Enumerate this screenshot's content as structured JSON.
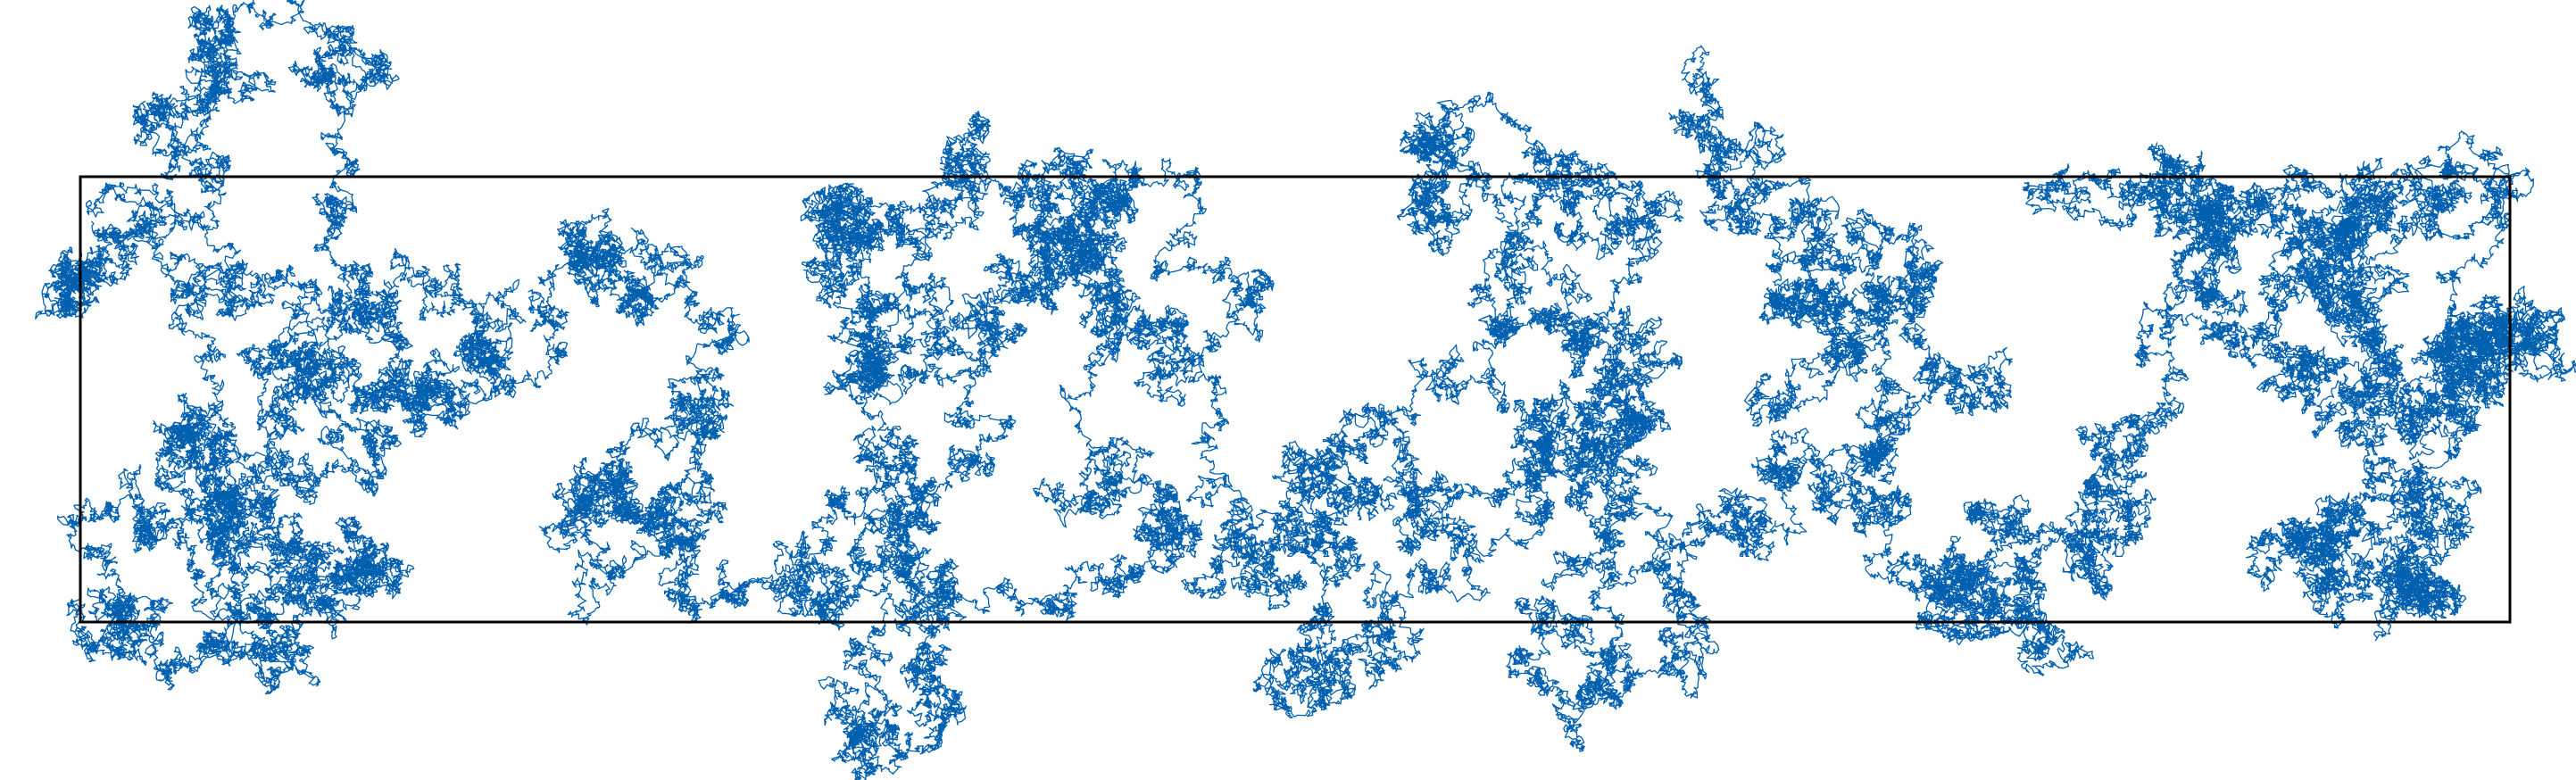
{
  "chart_data": {
    "type": "line",
    "title": "",
    "xlabel": "",
    "ylabel": "",
    "xlim": [
      0,
      11
    ],
    "ylim": [
      0,
      2
    ],
    "grid": false,
    "legend": "none",
    "axes_visible": false,
    "series": [
      {
        "color": "#0060b0",
        "waypoints": [
          [
            0.05,
            1.8
          ],
          [
            0.6,
            1.6
          ],
          [
            1.2,
            1.05
          ],
          [
            0.8,
            0.55
          ],
          [
            0.1,
            0.3
          ],
          [
            0.6,
            0.05
          ],
          [
            1.3,
            0.25
          ],
          [
            1.7,
            0.9
          ],
          [
            1.3,
            1.6
          ],
          [
            0.55,
            2.6
          ],
          [
            1.0,
            1.5
          ],
          [
            2.3,
            1.7
          ],
          [
            2.9,
            1.1
          ],
          [
            2.2,
            0.4
          ],
          [
            3.0,
            0.1
          ],
          [
            3.7,
            0.45
          ],
          [
            3.9,
            1.3
          ],
          [
            3.5,
            1.85
          ],
          [
            4.4,
            1.5
          ],
          [
            4.1,
            0.7
          ],
          [
            3.5,
            -0.55
          ],
          [
            4.7,
            0.2
          ],
          [
            5.0,
            1.0
          ],
          [
            4.5,
            1.95
          ],
          [
            5.3,
            1.45
          ],
          [
            5.6,
            0.45
          ],
          [
            5.4,
            -0.25
          ],
          [
            6.1,
            0.4
          ],
          [
            6.5,
            1.3
          ],
          [
            6.1,
            2.2
          ],
          [
            7.1,
            1.7
          ],
          [
            6.7,
            0.9
          ],
          [
            7.2,
            0.2
          ],
          [
            6.6,
            -0.05
          ],
          [
            7.6,
            0.45
          ],
          [
            7.95,
            1.3
          ],
          [
            7.4,
            1.95
          ],
          [
            8.4,
            1.6
          ],
          [
            8.1,
            0.75
          ],
          [
            8.5,
            0.1
          ],
          [
            8.9,
            0.4
          ],
          [
            9.4,
            1.2
          ],
          [
            8.9,
            1.9
          ],
          [
            9.7,
            1.7
          ],
          [
            10.1,
            1.2
          ],
          [
            10.35,
            1.9
          ],
          [
            10.9,
            1.3
          ],
          [
            10.6,
            0.65
          ],
          [
            10.1,
            0.2
          ],
          [
            10.6,
            0.05
          ],
          [
            11.2,
            1.25
          ],
          [
            10.7,
            1.95
          ],
          [
            10.1,
            1.65
          ]
        ]
      }
    ],
    "steps_per_segment": 3000,
    "rng_seed": 20240611
  },
  "box": {
    "x_range": [
      0,
      11
    ],
    "y_range": [
      0,
      2
    ],
    "stroke": "#000000"
  }
}
